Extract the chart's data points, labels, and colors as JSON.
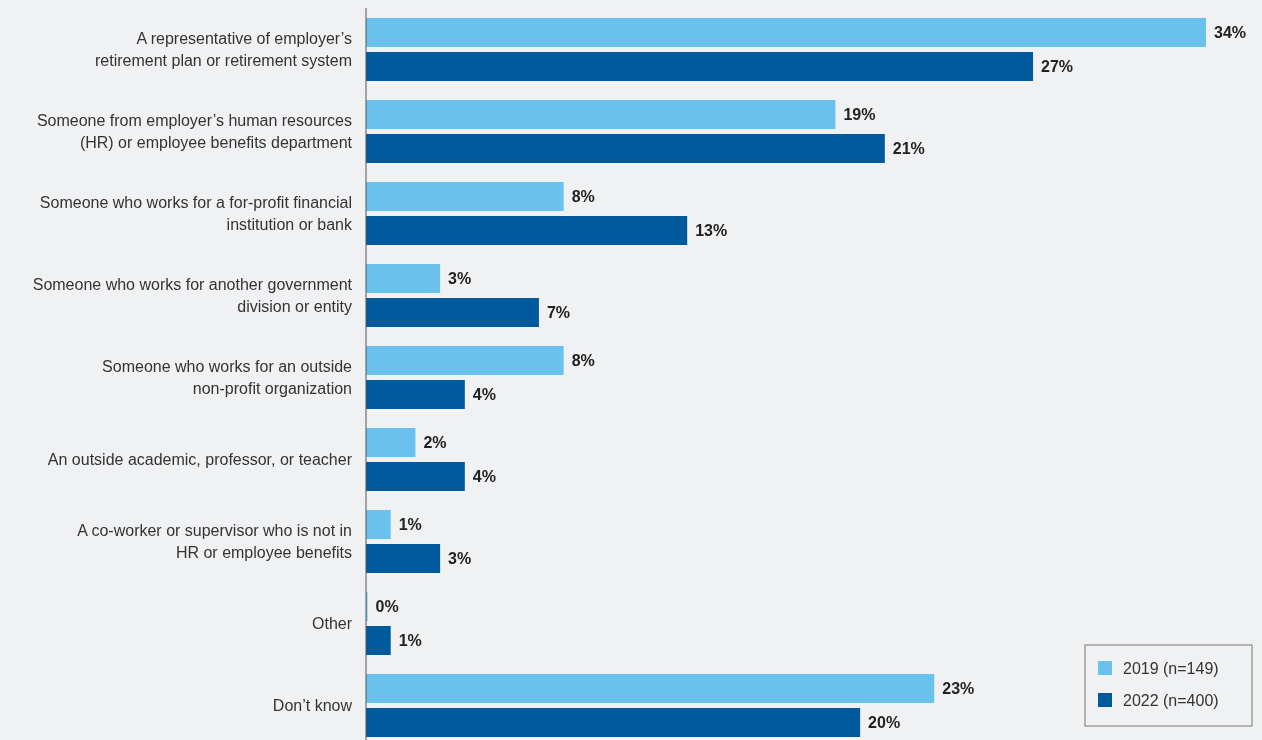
{
  "chart_data": {
    "type": "bar",
    "orientation": "horizontal",
    "categories": [
      "A representative of employer’s\nretirement plan or retirement system",
      "Someone from employer’s human resources\n(HR) or employee benefits department",
      "Someone who works for a for-profit financial\ninstitution or bank",
      "Someone who works for another government\ndivision or entity",
      "Someone who works for an outside\nnon-profit organization",
      "An outside academic, professor, or teacher",
      "A co-worker or supervisor who is not in\nHR or employee benefits",
      "Other",
      "Don’t know"
    ],
    "series": [
      {
        "name": "2019 (n=149)",
        "color": "#6ac1ec",
        "values": [
          34,
          19,
          8,
          3,
          8,
          2,
          1,
          0,
          23
        ],
        "value_labels": [
          "34%",
          "19%",
          "8%",
          "3%",
          "8%",
          "2%",
          "1%",
          "0%",
          "23%"
        ]
      },
      {
        "name": "2022 (n=400)",
        "color": "#005a9c",
        "values": [
          27,
          21,
          13,
          7,
          4,
          4,
          3,
          1,
          20
        ],
        "value_labels": [
          "27%",
          "21%",
          "13%",
          "7%",
          "4%",
          "4%",
          "3%",
          "1%",
          "20%"
        ]
      }
    ],
    "legend": "bottom right"
  }
}
